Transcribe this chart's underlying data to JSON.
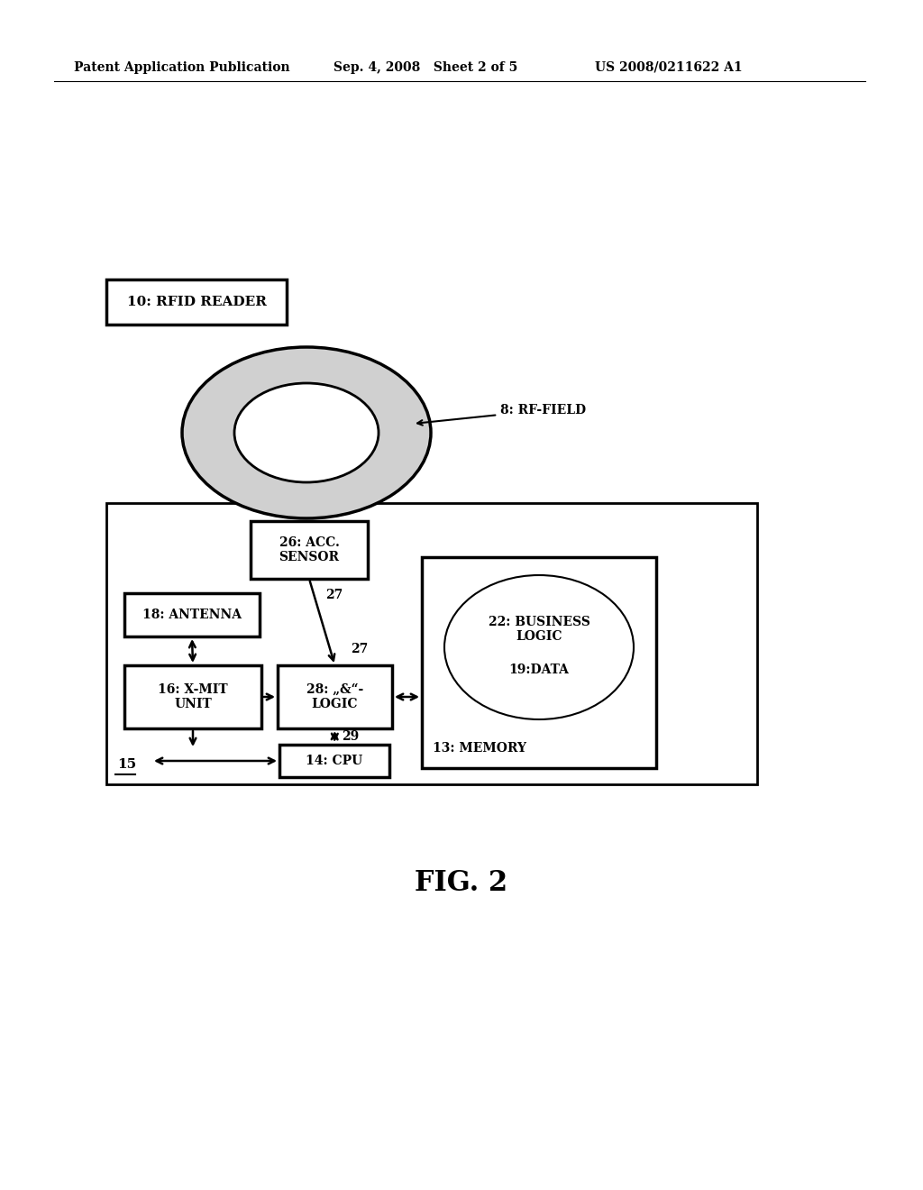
{
  "bg_color": "#ffffff",
  "header_left": "Patent Application Publication",
  "header_mid": "Sep. 4, 2008   Sheet 2 of 5",
  "header_right": "US 2008/0211622 A1",
  "fig_label": "FIG. 2",
  "rfid_label": "10: RFID READER",
  "rf_field_label": "8: RF-FIELD",
  "antenna_label": "18: ANTENNA",
  "xmit_label": "16: X-MIT\nUNIT",
  "acc_label": "26: ACC.\nSENSOR",
  "and_label": "28: „&“-\nLOGIC",
  "memory_label": "13: MEMORY",
  "business_label": "22: BUSINESS\nLOGIC",
  "data_label": "19:DATA",
  "cpu_label": "14: CPU",
  "device_label": "15"
}
